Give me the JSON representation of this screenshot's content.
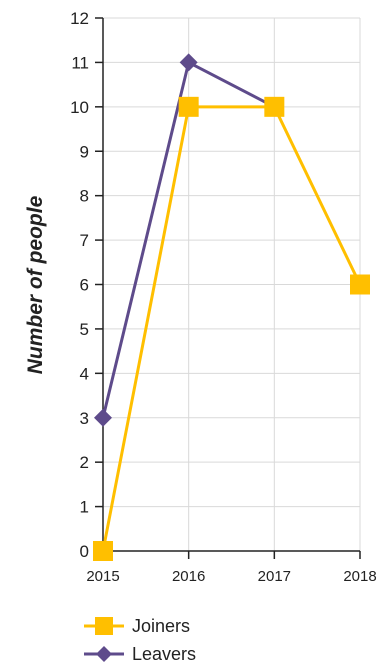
{
  "chart_data": {
    "type": "line",
    "x": [
      "2015",
      "2016",
      "2017",
      "2018"
    ],
    "ylabel": "Number of people",
    "xlabel": "",
    "title": "",
    "ylim": [
      0,
      12
    ],
    "yticks": [
      0,
      1,
      2,
      3,
      4,
      5,
      6,
      7,
      8,
      9,
      10,
      11,
      12
    ],
    "grid": true,
    "legend_position": "bottom-left",
    "series": [
      {
        "name": "Joiners",
        "values": [
          0,
          10,
          10,
          6
        ],
        "color": "#FFBF00",
        "marker": "square"
      },
      {
        "name": "Leavers",
        "values": [
          3,
          11,
          10,
          null
        ],
        "color": "#5E4B8B",
        "marker": "diamond"
      }
    ]
  }
}
